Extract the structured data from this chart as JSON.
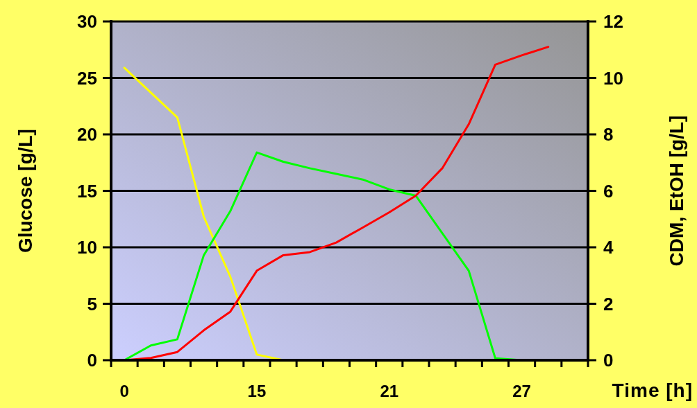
{
  "chart_data": {
    "type": "line",
    "xlabel": "Time [h]",
    "ylabel": "Glucose [g/L]",
    "y2label": "CDM, EtOH [g/L]",
    "categories": [
      "0",
      null,
      null,
      null,
      null,
      "15",
      null,
      null,
      null,
      null,
      "21",
      null,
      null,
      null,
      null,
      "27",
      null,
      null
    ],
    "series": [
      {
        "color": "#ffff00",
        "values": [
          25.9,
          23.7,
          21.5,
          12.7,
          7.4,
          0.5,
          0,
          null,
          null,
          null,
          null,
          null,
          null,
          null,
          null,
          null,
          null,
          null
        ]
      },
      {
        "color": "#00ff00",
        "axis": "y2",
        "values": [
          0,
          0.52,
          0.74,
          3.72,
          5.28,
          7.36,
          7.03,
          6.8,
          6.6,
          6.4,
          6.05,
          5.83,
          4.5,
          3.17,
          0.07,
          0,
          null,
          null
        ]
      },
      {
        "color": "#ff0000",
        "axis": "y2",
        "values": [
          0,
          0.08,
          0.29,
          1.06,
          1.72,
          3.17,
          3.72,
          3.83,
          4.17,
          4.7,
          5.24,
          5.83,
          6.8,
          8.36,
          10.47,
          10.8,
          11.1,
          null
        ]
      }
    ],
    "ylim": [
      0,
      30
    ],
    "yticks": [
      0,
      5,
      10,
      15,
      20,
      25,
      30
    ],
    "y2lim": [
      0,
      12
    ],
    "y2ticks": [
      0,
      2,
      4,
      6,
      8,
      10,
      12
    ],
    "grid": "y",
    "marker": "none",
    "line_style": "solid"
  }
}
